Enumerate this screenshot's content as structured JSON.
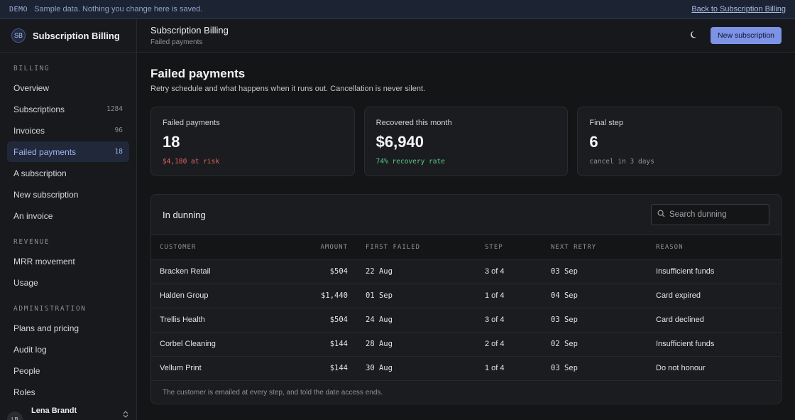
{
  "banner": {
    "tag": "DEMO",
    "message": "Sample data. Nothing you change here is saved.",
    "back_link": "Back to Subscription Billing"
  },
  "brand": {
    "initials": "SB",
    "name": "Subscription Billing"
  },
  "sidebar": {
    "sections": [
      {
        "title": "BILLING",
        "items": [
          {
            "label": "Overview",
            "count": ""
          },
          {
            "label": "Subscriptions",
            "count": "1284"
          },
          {
            "label": "Invoices",
            "count": "96"
          },
          {
            "label": "Failed payments",
            "count": "18",
            "active": true
          },
          {
            "label": "A subscription",
            "count": ""
          },
          {
            "label": "New subscription",
            "count": ""
          },
          {
            "label": "An invoice",
            "count": ""
          }
        ]
      },
      {
        "title": "REVENUE",
        "items": [
          {
            "label": "MRR movement",
            "count": ""
          },
          {
            "label": "Usage",
            "count": ""
          }
        ]
      },
      {
        "title": "ADMINISTRATION",
        "items": [
          {
            "label": "Plans and pricing",
            "count": ""
          },
          {
            "label": "Audit log",
            "count": ""
          },
          {
            "label": "People",
            "count": ""
          },
          {
            "label": "Roles",
            "count": ""
          }
        ]
      }
    ],
    "user": {
      "initials": "LB",
      "name": "Lena Brandt"
    }
  },
  "header": {
    "title": "Subscription Billing",
    "subtitle": "Failed payments",
    "theme_icon": "moon-icon",
    "new_button": "New subscription"
  },
  "page": {
    "title": "Failed payments",
    "description": "Retry schedule and what happens when it runs out. Cancellation is never silent."
  },
  "stats": [
    {
      "label": "Failed payments",
      "value": "18",
      "sub": "$4,180 at risk"
    },
    {
      "label": "Recovered this month",
      "value": "$6,940",
      "sub": "74% recovery rate"
    },
    {
      "label": "Final step",
      "value": "6",
      "sub": "cancel in 3 days"
    }
  ],
  "dunning": {
    "title": "In dunning",
    "search_placeholder": "Search dunning",
    "columns": [
      "CUSTOMER",
      "AMOUNT",
      "FIRST FAILED",
      "STEP",
      "NEXT RETRY",
      "REASON"
    ],
    "rows": [
      [
        "Bracken Retail",
        "$504",
        "22 Aug",
        "3 of 4",
        "03 Sep",
        "Insufficient funds"
      ],
      [
        "Halden Group",
        "$1,440",
        "01 Sep",
        "1 of 4",
        "04 Sep",
        "Card expired"
      ],
      [
        "Trellis Health",
        "$504",
        "24 Aug",
        "3 of 4",
        "03 Sep",
        "Card declined"
      ],
      [
        "Corbel Cleaning",
        "$144",
        "28 Aug",
        "2 of 4",
        "02 Sep",
        "Insufficient funds"
      ],
      [
        "Vellum Print",
        "$144",
        "30 Aug",
        "1 of 4",
        "03 Sep",
        "Do not honour"
      ]
    ],
    "footer": "The customer is emailed at every step, and told the date access ends."
  },
  "colors": {
    "accent": "#7c93e6",
    "risk": "#e0645f",
    "good": "#5cc98a"
  }
}
